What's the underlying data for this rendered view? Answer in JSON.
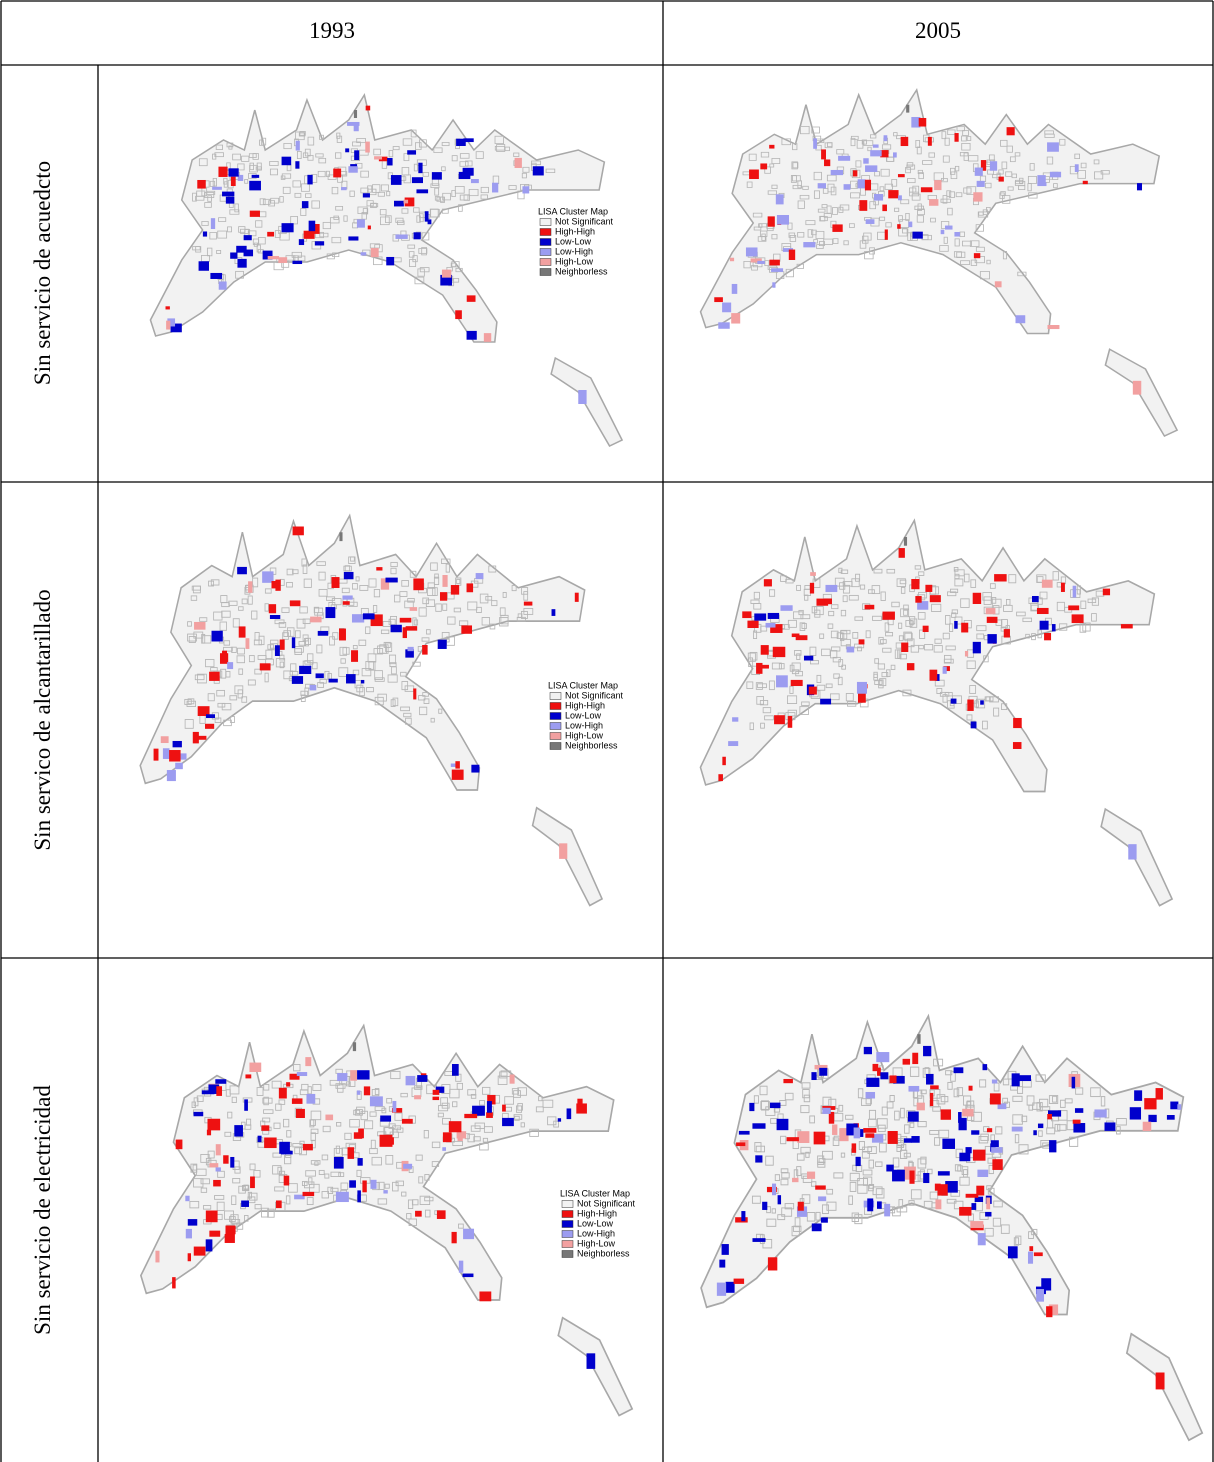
{
  "header": {
    "columns": [
      "1993",
      "2005"
    ]
  },
  "rows": [
    {
      "label": "Sin servicio de acuedcto",
      "legend": {
        "title": "LISA Cluster Map",
        "items": [
          {
            "label": "Not Significant",
            "color": "#f2f2f2"
          },
          {
            "label": "High-High",
            "color": "#ee1111"
          },
          {
            "label": "Low-Low",
            "color": "#0000cc"
          },
          {
            "label": "Low-High",
            "color": "#9c9cf0"
          },
          {
            "label": "High-Low",
            "color": "#f2a0a0"
          },
          {
            "label": "Neighborless",
            "color": "#777777"
          }
        ]
      }
    },
    {
      "label": "Sin servico de alcantarillado",
      "legend": {
        "title": "LISA Cluster Map",
        "items": [
          {
            "label": "Not Significant",
            "color": "#f2f2f2"
          },
          {
            "label": "High-High",
            "color": "#ee1111"
          },
          {
            "label": "Low-Low",
            "color": "#0000cc"
          },
          {
            "label": "Low-High",
            "color": "#9c9cf0"
          },
          {
            "label": "High-Low",
            "color": "#f2a0a0"
          },
          {
            "label": "Neighborless",
            "color": "#777777"
          }
        ]
      }
    },
    {
      "label": "Sin servicio de electricidad",
      "legend": {
        "title": "LISA Cluster Map",
        "items": [
          {
            "label": "Not Significant",
            "color": "#f2f2f2"
          },
          {
            "label": "High-High",
            "color": "#ee1111"
          },
          {
            "label": "Low-Low",
            "color": "#0000cc"
          },
          {
            "label": "Low-High",
            "color": "#9c9cf0"
          },
          {
            "label": "High-Low",
            "color": "#f2a0a0"
          },
          {
            "label": "Neighborless",
            "color": "#777777"
          }
        ]
      }
    }
  ]
}
